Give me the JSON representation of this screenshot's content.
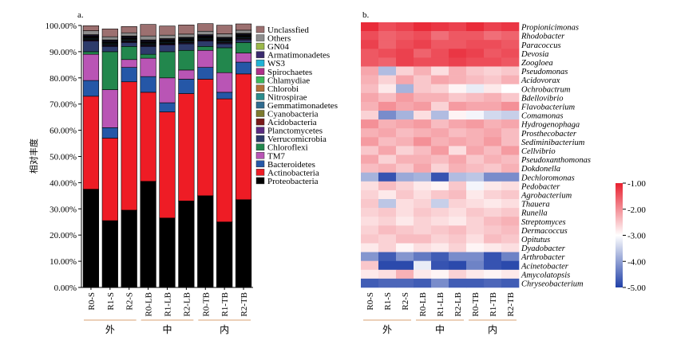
{
  "panels": [
    {
      "label": "a.",
      "chart_data": {
        "type": "bar",
        "stacked": true,
        "ylabel": "相对丰度",
        "ylim": [
          0,
          100
        ],
        "yticks": [
          "0.00%",
          "10.00%",
          "20.00%",
          "30.00%",
          "40.00%",
          "50.00%",
          "60.00%",
          "70.00%",
          "80.00%",
          "90.00%",
          "100.00%"
        ],
        "categories": [
          "R0-S",
          "R1-S",
          "R2-S",
          "R0-LB",
          "R1-LB",
          "R2-LB",
          "R0-TB",
          "R1-TB",
          "R2-TB"
        ],
        "groups": [
          {
            "label": "外",
            "start": 0,
            "end": 2
          },
          {
            "label": "中",
            "start": 3,
            "end": 5
          },
          {
            "label": "内",
            "start": 6,
            "end": 8
          }
        ],
        "legend_position": "right",
        "series": [
          {
            "name": "Proteobacteria",
            "color": "#000000",
            "values": [
              37.5,
              25.5,
              29.5,
              40.5,
              26.5,
              33,
              35,
              25,
              33.5
            ]
          },
          {
            "name": "Actinobacteria",
            "color": "#ee1c25",
            "values": [
              35.5,
              31.5,
              49,
              34,
              40.5,
              41,
              44.5,
              47,
              48
            ]
          },
          {
            "name": "Bacteroidetes",
            "color": "#2557a7",
            "values": [
              6,
              4,
              5.5,
              6,
              3.5,
              5.5,
              4.5,
              2.5,
              4.5
            ]
          },
          {
            "name": "TM7",
            "color": "#b955b5",
            "values": [
              10,
              14.5,
              3,
              7,
              9.5,
              3.5,
              6.5,
              7.5,
              3.5
            ]
          },
          {
            "name": "Chloroflexi",
            "color": "#22874d",
            "values": [
              1,
              14.5,
              5,
              1.5,
              10,
              7.5,
              1.5,
              9.5,
              4
            ]
          },
          {
            "name": "Verrucomicrobia",
            "color": "#2e3b6b",
            "values": [
              4,
              2,
              1.5,
              3,
              2.5,
              2.5,
              2,
              1.5,
              1
            ]
          },
          {
            "name": "Planctomycetes",
            "color": "#5b2b82",
            "values": [
              0.3,
              0.3,
              0.3,
              0.3,
              0.3,
              0.3,
              0.3,
              0.3,
              0.3
            ]
          },
          {
            "name": "Acidobacteria",
            "color": "#7a1a1a",
            "values": [
              0.2,
              0.2,
              0.2,
              0.2,
              0.2,
              0.2,
              0.2,
              0.2,
              0.2
            ]
          },
          {
            "name": "Cyanobacteria",
            "color": "#7d7a2e",
            "values": [
              0.2,
              0.2,
              0.2,
              0.2,
              0.2,
              0.2,
              0.2,
              0.2,
              0.2
            ]
          },
          {
            "name": "Gemmatimonadetes",
            "color": "#2f6b8f",
            "values": [
              0.3,
              0.3,
              0.3,
              0.3,
              0.3,
              0.3,
              0.3,
              0.3,
              0.3
            ]
          },
          {
            "name": "Nitrospirae",
            "color": "#2a8c8c",
            "values": [
              0.2,
              0.2,
              0.2,
              0.2,
              0.2,
              0.2,
              0.2,
              0.2,
              0.2
            ]
          },
          {
            "name": "Chlorobi",
            "color": "#b5703a",
            "values": [
              0.2,
              0.2,
              0.2,
              0.2,
              0.2,
              0.2,
              0.2,
              0.2,
              0.2
            ]
          },
          {
            "name": "Chlamydiae",
            "color": "#3cb85c",
            "values": [
              0.2,
              0.2,
              0.2,
              0.2,
              0.2,
              0.2,
              0.2,
              0.2,
              0.2
            ]
          },
          {
            "name": "Spirochaetes",
            "color": "#b0308a",
            "values": [
              0.2,
              0.2,
              0.2,
              0.2,
              0.2,
              0.2,
              0.2,
              0.2,
              0.2
            ]
          },
          {
            "name": "WS3",
            "color": "#1fb3d6",
            "values": [
              0.2,
              0.2,
              0.2,
              0.2,
              0.2,
              0.2,
              0.2,
              0.2,
              0.2
            ]
          },
          {
            "name": "Armatimonadetes",
            "color": "#3a2a6e",
            "values": [
              0.3,
              0.3,
              0.3,
              0.3,
              0.3,
              0.3,
              0.3,
              0.3,
              0.3
            ]
          },
          {
            "name": "GN04",
            "color": "#9bb84a",
            "values": [
              0.2,
              0.2,
              0.2,
              0.2,
              0.2,
              0.2,
              0.2,
              0.2,
              0.2
            ]
          },
          {
            "name": "Others",
            "color": "#8c8c8c",
            "values": [
              1.5,
              1.2,
              1.2,
              1.5,
              1.3,
              1.2,
              1.3,
              1.3,
              1.2
            ]
          },
          {
            "name": "Unclassfied",
            "color": "#9c7070",
            "values": [
              1.9,
              3.0,
              2.4,
              4.4,
              3.5,
              3.5,
              2.9,
              3.3,
              2.4
            ]
          }
        ]
      }
    },
    {
      "label": "b.",
      "chart_data": {
        "type": "heatmap",
        "columns": [
          "R0-S",
          "R1-S",
          "R2-S",
          "R0-LB",
          "R1-LB",
          "R2-LB",
          "R0-TB",
          "R1-TB",
          "R2-TB"
        ],
        "groups": [
          {
            "label": "外",
            "start": 0,
            "end": 2
          },
          {
            "label": "中",
            "start": 3,
            "end": 5
          },
          {
            "label": "内",
            "start": 6,
            "end": 8
          }
        ],
        "colorbar": {
          "min": -5,
          "max": -1,
          "ticks": [
            "-1.00",
            "-2.00",
            "-3.00",
            "-4.00",
            "-5.00"
          ],
          "colors": [
            "#2040a8",
            "#ffffff",
            "#e8202f"
          ]
        },
        "rows": [
          {
            "name": "Propionicimonas",
            "values": [
              -1.1,
              -1.4,
              -1.3,
              -1.1,
              -1.2,
              -1.3,
              -1.1,
              -1.3,
              -1.2
            ]
          },
          {
            "name": "Rhodobacter",
            "values": [
              -1.4,
              -1.6,
              -1.5,
              -1.4,
              -1.7,
              -1.5,
              -1.5,
              -1.7,
              -1.6
            ]
          },
          {
            "name": "Paracoccus",
            "values": [
              -1.3,
              -1.6,
              -1.4,
              -1.3,
              -1.5,
              -1.5,
              -1.4,
              -1.4,
              -1.5
            ]
          },
          {
            "name": "Devosia",
            "values": [
              -1.5,
              -1.4,
              -1.3,
              -1.6,
              -1.4,
              -1.2,
              -1.3,
              -1.5,
              -1.4
            ]
          },
          {
            "name": "Zoogloea",
            "values": [
              -1.5,
              -1.6,
              -1.3,
              -1.4,
              -1.4,
              -1.3,
              -1.4,
              -1.4,
              -1.5
            ]
          },
          {
            "name": "Pseudomonas",
            "values": [
              -2.2,
              -3.7,
              -2.6,
              -2.3,
              -2.7,
              -2.3,
              -2.5,
              -2.6,
              -2.5
            ]
          },
          {
            "name": "Acidovorax",
            "values": [
              -2.3,
              -2.6,
              -2.2,
              -2.5,
              -2.2,
              -2.3,
              -2.4,
              -2.5,
              -2.3
            ]
          },
          {
            "name": "Ochrobactrum",
            "values": [
              -2.4,
              -2.8,
              -3.8,
              -2.5,
              -2.6,
              -2.9,
              -3.2,
              -2.8,
              -3.0
            ]
          },
          {
            "name": "Bdellovibrio",
            "values": [
              -2.2,
              -2.4,
              -2.1,
              -2.3,
              -2.3,
              -2.5,
              -2.4,
              -2.3,
              -2.5
            ]
          },
          {
            "name": "Flavobacterium",
            "values": [
              -2.3,
              -2.0,
              -2.2,
              -2.1,
              -2.6,
              -2.1,
              -2.2,
              -2.2,
              -2.0
            ]
          },
          {
            "name": "Comamonas",
            "values": [
              -2.6,
              -4.2,
              -3.8,
              -2.7,
              -3.7,
              -2.9,
              -3.1,
              -3.4,
              -3.5
            ]
          },
          {
            "name": "Hydrogenophaga",
            "values": [
              -2.0,
              -2.3,
              -2.2,
              -2.1,
              -2.4,
              -2.2,
              -2.1,
              -2.3,
              -2.2
            ]
          },
          {
            "name": "Prosthecobacter",
            "values": [
              -2.3,
              -2.2,
              -2.4,
              -2.3,
              -2.2,
              -2.4,
              -2.3,
              -2.2,
              -2.4
            ]
          },
          {
            "name": "Sediminibacterium",
            "values": [
              -2.1,
              -2.4,
              -2.3,
              -2.0,
              -2.3,
              -2.2,
              -2.3,
              -2.1,
              -2.4
            ]
          },
          {
            "name": "Cellvibrio",
            "values": [
              -2.5,
              -2.2,
              -2.6,
              -2.4,
              -2.1,
              -2.7,
              -2.2,
              -2.4,
              -2.1
            ]
          },
          {
            "name": "Pseudoxanthomonas",
            "values": [
              -2.2,
              -2.6,
              -2.3,
              -2.3,
              -2.4,
              -2.2,
              -2.5,
              -2.3,
              -2.4
            ]
          },
          {
            "name": "Dokdonella",
            "values": [
              -2.4,
              -2.3,
              -2.5,
              -2.2,
              -2.6,
              -2.3,
              -2.4,
              -2.5,
              -2.3
            ]
          },
          {
            "name": "Dechloromonas",
            "values": [
              -3.8,
              -4.8,
              -3.9,
              -3.8,
              -4.8,
              -3.7,
              -3.6,
              -4.2,
              -4.2
            ]
          },
          {
            "name": "Pedobacter",
            "values": [
              -2.7,
              -2.4,
              -2.6,
              -2.8,
              -2.9,
              -2.5,
              -3.1,
              -2.8,
              -2.7
            ]
          },
          {
            "name": "Agrobacterium",
            "values": [
              -2.6,
              -2.8,
              -2.5,
              -2.7,
              -2.5,
              -2.4,
              -2.8,
              -2.6,
              -2.5
            ]
          },
          {
            "name": "Thauera",
            "values": [
              -2.5,
              -3.6,
              -2.7,
              -2.6,
              -3.5,
              -2.6,
              -2.7,
              -2.8,
              -2.7
            ]
          },
          {
            "name": "Runella",
            "values": [
              -2.6,
              -2.5,
              -2.7,
              -2.5,
              -2.6,
              -2.7,
              -2.5,
              -2.6,
              -2.5
            ]
          },
          {
            "name": "Streptomyces",
            "values": [
              -2.7,
              -2.6,
              -2.8,
              -2.6,
              -2.7,
              -2.8,
              -2.6,
              -2.4,
              -2.3
            ]
          },
          {
            "name": "Dermacoccus",
            "values": [
              -2.6,
              -2.4,
              -2.5,
              -2.6,
              -2.5,
              -2.4,
              -2.6,
              -2.5,
              -2.4
            ]
          },
          {
            "name": "Opitutus",
            "values": [
              -2.5,
              -2.6,
              -2.4,
              -2.4,
              -2.6,
              -2.5,
              -2.7,
              -2.4,
              -2.5
            ]
          },
          {
            "name": "Dyadobacter",
            "values": [
              -2.8,
              -2.6,
              -2.9,
              -2.7,
              -2.8,
              -2.6,
              -2.9,
              -2.8,
              -2.7
            ]
          },
          {
            "name": "Arthrobacter",
            "values": [
              -4.1,
              -4.7,
              -4.1,
              -4.4,
              -4.7,
              -4.2,
              -4.2,
              -4.8,
              -4.3
            ]
          },
          {
            "name": "Acinetobacter",
            "values": [
              -2.5,
              -4.9,
              -4.9,
              -3.2,
              -4.8,
              -4.9,
              -4.3,
              -4.8,
              -4.9
            ]
          },
          {
            "name": "Amycolatopsis",
            "values": [
              -2.8,
              -2.7,
              -2.3,
              -2.8,
              -2.9,
              -2.6,
              -2.8,
              -2.9,
              -2.8
            ]
          },
          {
            "name": "Chryseobacterium",
            "values": [
              -4.7,
              -4.6,
              -4.6,
              -4.7,
              -4.2,
              -4.7,
              -4.7,
              -4.6,
              -4.7
            ]
          }
        ]
      }
    }
  ]
}
